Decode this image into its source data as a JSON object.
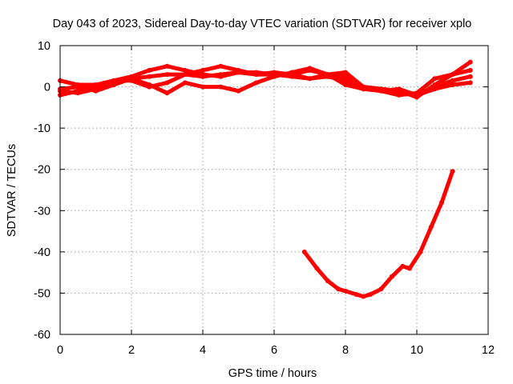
{
  "chart_data": {
    "type": "line",
    "title": "Day 043 of 2023, Sidereal Day-to-day VTEC variation (SDTVAR) for receiver xplo",
    "xlabel": "GPS time / hours",
    "ylabel": "SDTVAR / TECUs",
    "xlim": [
      0,
      12
    ],
    "ylim": [
      -60,
      10
    ],
    "xticks": [
      0,
      2,
      4,
      6,
      8,
      10,
      12
    ],
    "yticks": [
      -60,
      -50,
      -40,
      -30,
      -20,
      -10,
      0,
      10
    ],
    "xtick_labels": [
      "0",
      "2",
      "4",
      "6",
      "8",
      "10",
      "12"
    ],
    "ytick_labels": [
      "-60",
      "-50",
      "-40",
      "-30",
      "-20",
      "-10",
      "0",
      "10"
    ],
    "grid": true,
    "series_color": "#ff0000",
    "series": [
      {
        "name": "track-1",
        "x": [
          0,
          0.5,
          1,
          1.5,
          2,
          2.5,
          3,
          3.5,
          4,
          4.5,
          5,
          5.5,
          6,
          6.5,
          7,
          7.5,
          8,
          8.5,
          9,
          9.5,
          10,
          10.5,
          11,
          11.5
        ],
        "y": [
          1.5,
          0.5,
          0.5,
          1.5,
          2.5,
          4,
          5,
          4,
          3,
          2.5,
          3.5,
          3.5,
          3,
          2.5,
          2,
          3,
          3.5,
          0,
          -0.5,
          -1,
          -2.5,
          0.5,
          3,
          6
        ]
      },
      {
        "name": "track-2",
        "x": [
          0,
          0.5,
          1,
          1.5,
          2,
          2.5,
          3,
          3.5,
          4,
          4.5,
          5,
          5.5,
          6,
          6.5,
          7,
          7.5,
          8,
          8.5,
          9,
          9.5,
          10,
          10.5,
          11,
          11.5
        ],
        "y": [
          -1,
          -1.5,
          -0.5,
          1,
          2,
          2.5,
          3,
          3,
          2.5,
          3,
          3.5,
          3,
          3,
          3,
          4,
          3,
          2.5,
          -0.5,
          -1,
          -2,
          -1.5,
          2,
          3,
          4
        ]
      },
      {
        "name": "track-3",
        "x": [
          0,
          0.5,
          1,
          1.5,
          2,
          2.5,
          3,
          3.5,
          4,
          4.5,
          5,
          5.5,
          6,
          6.5,
          7,
          7.5,
          8,
          8.5,
          9,
          9.5,
          10,
          10.5,
          11,
          11.5
        ],
        "y": [
          -2,
          -1,
          0,
          1.5,
          1.5,
          0,
          1,
          3,
          4,
          5,
          4,
          3,
          3.5,
          3,
          2,
          2.5,
          1.5,
          0,
          -0.5,
          -1,
          -2,
          0,
          1.5,
          2.5
        ]
      },
      {
        "name": "track-4",
        "x": [
          0,
          0.5,
          1,
          1.5,
          2,
          2.5,
          3,
          3.5,
          4,
          4.5,
          5,
          5.5,
          6,
          6.5,
          7,
          7.5,
          8,
          8.5,
          9,
          9.5,
          10,
          10.5,
          11,
          11.5
        ],
        "y": [
          -0.5,
          0,
          -1,
          0.5,
          2,
          0.5,
          -1.5,
          1,
          0,
          0,
          -1,
          1,
          2.5,
          3.5,
          4.5,
          3,
          0.5,
          -0.5,
          -1,
          -0.5,
          -2,
          -0.5,
          0.5,
          1
        ]
      },
      {
        "name": "track-5",
        "x": [
          6.85,
          7.2,
          7.5,
          7.8,
          8.0,
          8.3,
          8.5,
          8.7,
          9.0,
          9.3,
          9.6,
          9.8,
          10.1,
          10.4,
          10.7,
          11.0
        ],
        "y": [
          -40,
          -44,
          -47,
          -49,
          -49.5,
          -50.3,
          -50.8,
          -50.3,
          -49,
          -46,
          -43.5,
          -44,
          -40,
          -34,
          -28,
          -20.5
        ]
      }
    ]
  }
}
